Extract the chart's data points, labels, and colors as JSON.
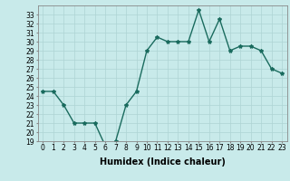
{
  "x": [
    0,
    1,
    2,
    3,
    4,
    5,
    6,
    7,
    8,
    9,
    10,
    11,
    12,
    13,
    14,
    15,
    16,
    17,
    18,
    19,
    20,
    21,
    22,
    23
  ],
  "y": [
    24.5,
    24.5,
    23.0,
    21.0,
    21.0,
    21.0,
    18.5,
    19.0,
    23.0,
    24.5,
    29.0,
    30.5,
    30.0,
    30.0,
    30.0,
    33.5,
    30.0,
    32.5,
    29.0,
    29.5,
    29.5,
    29.0,
    27.0,
    26.5
  ],
  "line_color": "#1a6b5e",
  "marker": "*",
  "marker_size": 3,
  "xlabel": "Humidex (Indice chaleur)",
  "xlabel_fontsize": 7,
  "ylabel_ticks": [
    19,
    20,
    21,
    22,
    23,
    24,
    25,
    26,
    27,
    28,
    29,
    30,
    31,
    32,
    33
  ],
  "xtick_labels": [
    "0",
    "1",
    "2",
    "3",
    "4",
    "5",
    "6",
    "7",
    "8",
    "9",
    "10",
    "11",
    "12",
    "13",
    "14",
    "15",
    "16",
    "17",
    "18",
    "19",
    "20",
    "21",
    "22",
    "23"
  ],
  "xlim": [
    -0.5,
    23.5
  ],
  "ylim": [
    19,
    34
  ],
  "background_color": "#c8eaea",
  "grid_color": "#aed4d4",
  "tick_fontsize": 5.5,
  "line_width": 1.0
}
